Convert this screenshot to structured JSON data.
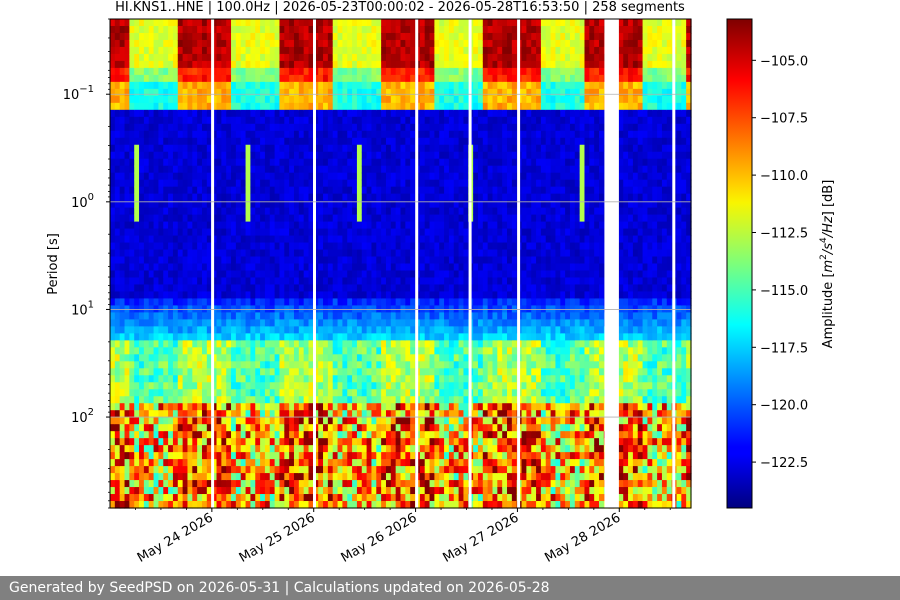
{
  "footer_text": "Generated by SeedPSD on 2026-05-31 | Calculations updated on 2026-05-28",
  "chart_data": {
    "type": "heatmap",
    "title": "HI.KNS1..HNE | 100.0Hz | 2026-05-23T00:00:02 - 2026-05-28T16:53:50 | 258 segments",
    "xlabel": "",
    "ylabel": "Period [s]",
    "x_axis": {
      "type": "date",
      "range": [
        "2026-05-23T00:00:02",
        "2026-05-28T16:53:50"
      ],
      "ticks": [
        {
          "value": "2026-05-24",
          "label": "May 24 2026"
        },
        {
          "value": "2026-05-25",
          "label": "May 25 2026"
        },
        {
          "value": "2026-05-26",
          "label": "May 26 2026"
        },
        {
          "value": "2026-05-27",
          "label": "May 27 2026"
        },
        {
          "value": "2026-05-28",
          "label": "May 28 2026"
        }
      ]
    },
    "y_axis": {
      "type": "log",
      "inverted": true,
      "range": [
        0.02,
        700
      ],
      "ticks": [
        {
          "value": 0.1,
          "base": "10",
          "exp": "−1"
        },
        {
          "value": 1,
          "base": "10",
          "exp": "0"
        },
        {
          "value": 10,
          "base": "10",
          "exp": "1"
        },
        {
          "value": 100,
          "base": "10",
          "exp": "2"
        }
      ],
      "grid": true
    },
    "colorbar": {
      "label": "Amplitude [m²/s⁴/Hz] [dB]",
      "label_parts": {
        "prefix": "Amplitude [",
        "m": "m",
        "sq": "2",
        "s": "/s",
        "s4": "4",
        "hz": "/Hz",
        "suffix": "] [dB]"
      },
      "colormap": "jet",
      "range": [
        -124.5,
        -103.2
      ],
      "ticks": [
        -105.0,
        -107.5,
        -110.0,
        -112.5,
        -115.0,
        -117.5,
        -120.0,
        -122.5
      ],
      "tick_labels": [
        "−105.0",
        "−107.5",
        "−110.0",
        "−112.5",
        "−115.0",
        "−117.5",
        "−120.0",
        "−122.5"
      ]
    },
    "gaps": [
      {
        "start": "2026-05-23T23:50",
        "end": "2026-05-24T00:10"
      },
      {
        "start": "2026-05-24T23:50",
        "end": "2026-05-25T00:05"
      },
      {
        "start": "2026-05-25T23:55",
        "end": "2026-05-26T00:05"
      },
      {
        "start": "2026-05-26T12:30",
        "end": "2026-05-26T12:40"
      },
      {
        "start": "2026-05-26T23:55",
        "end": "2026-05-27T00:05"
      },
      {
        "start": "2026-05-27T20:30",
        "end": "2026-05-27T23:55"
      },
      {
        "start": "2026-05-28T12:30",
        "end": "2026-05-28T12:50"
      }
    ]
  }
}
